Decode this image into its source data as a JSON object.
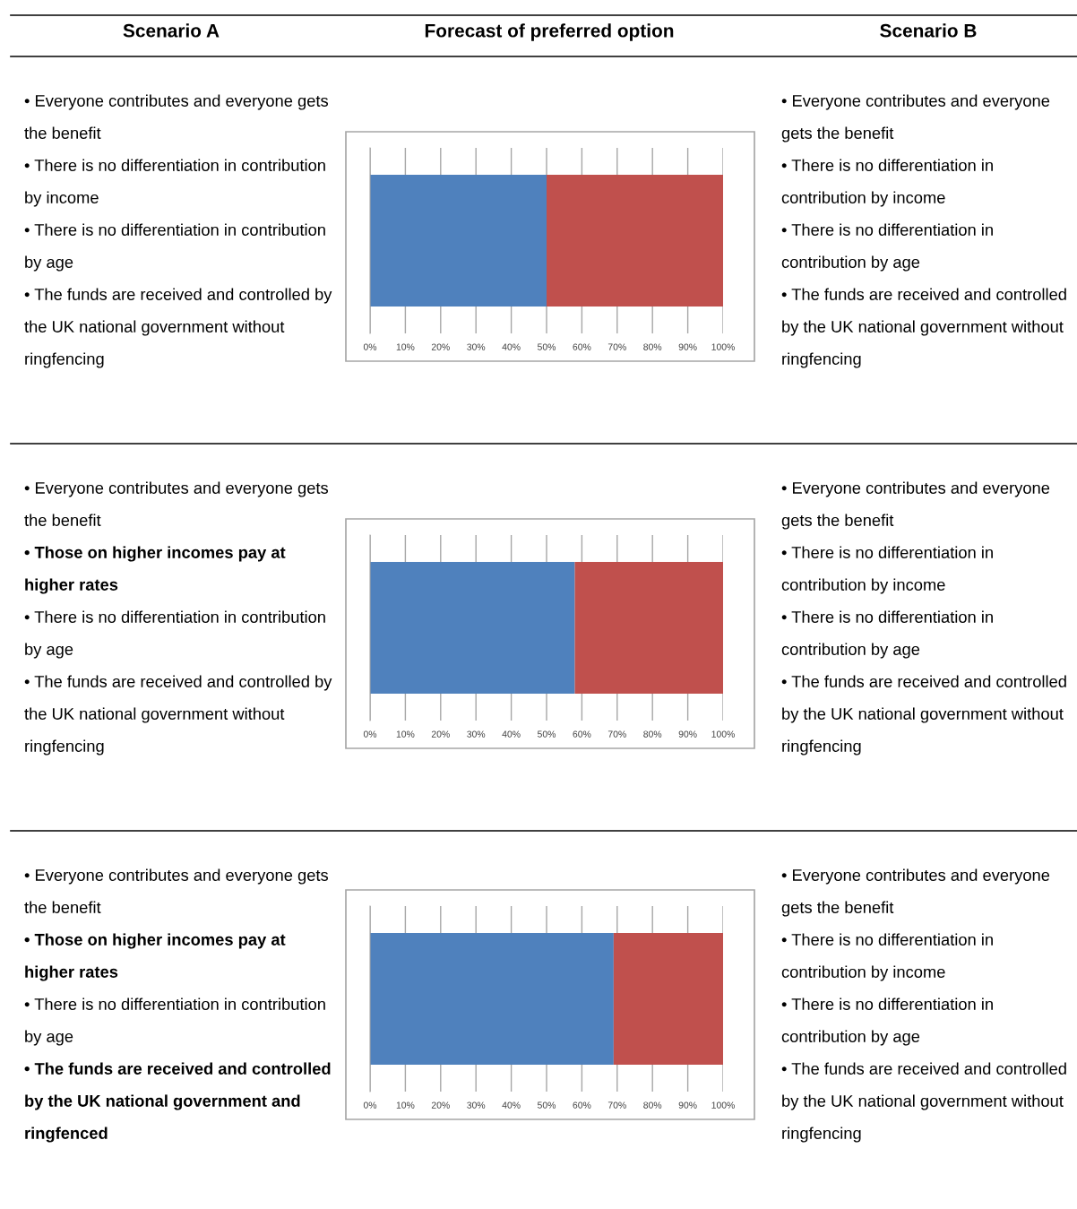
{
  "chart_data": [
    {
      "type": "other",
      "annotations": [
        "Scenario A",
        "Forecast of preferred option",
        "Scenario B"
      ]
    },
    {
      "type": "bar",
      "orientation": "horizontal",
      "stacked": true,
      "categories": [
        null
      ],
      "grid": "x",
      "xlim": [
        0,
        100
      ],
      "xticks": [
        {
          "value": 0,
          "label": "0%"
        },
        {
          "value": 10,
          "label": "10%"
        },
        {
          "value": 20,
          "label": "20%"
        },
        {
          "value": 30,
          "label": "30%"
        },
        {
          "value": 40,
          "label": "40%"
        },
        {
          "value": 50,
          "label": "50%"
        },
        {
          "value": 60,
          "label": "60%"
        },
        {
          "value": 70,
          "label": "70%"
        },
        {
          "value": 80,
          "label": "80%"
        },
        {
          "value": 90,
          "label": "90%"
        },
        {
          "value": 100,
          "label": "100%"
        }
      ],
      "series": [
        {
          "color": "#4f81bd",
          "values": [
            50
          ]
        },
        {
          "color": "#c0504d",
          "values": [
            50
          ]
        }
      ],
      "annotations": [
        "• Everyone contributes and everyone gets the benefit",
        "• There is no differentiation in contribution by income",
        "• There is no differentiation in contribution by age",
        "• The funds are received and controlled by the UK national government without ringfencing",
        "• Everyone contributes and everyone gets the benefit",
        "• There is no differentiation in contribution by income",
        "• There is no differentiation in contribution by age",
        "• The funds are received and controlled by the UK national government without ringfencing"
      ]
    },
    {
      "type": "bar",
      "orientation": "horizontal",
      "stacked": true,
      "categories": [
        null
      ],
      "grid": "x",
      "xlim": [
        0,
        100
      ],
      "xticks": [
        {
          "value": 0,
          "label": "0%"
        },
        {
          "value": 10,
          "label": "10%"
        },
        {
          "value": 20,
          "label": "20%"
        },
        {
          "value": 30,
          "label": "30%"
        },
        {
          "value": 40,
          "label": "40%"
        },
        {
          "value": 50,
          "label": "50%"
        },
        {
          "value": 60,
          "label": "60%"
        },
        {
          "value": 70,
          "label": "70%"
        },
        {
          "value": 80,
          "label": "80%"
        },
        {
          "value": 90,
          "label": "90%"
        },
        {
          "value": 100,
          "label": "100%"
        }
      ],
      "series": [
        {
          "color": "#4f81bd",
          "values": [
            58
          ]
        },
        {
          "color": "#c0504d",
          "values": [
            42
          ]
        }
      ],
      "annotations": [
        "• Everyone contributes and everyone gets the benefit",
        "• Those on higher incomes pay at higher rates",
        "• There is no differentiation in contribution by age",
        "• The funds are received and controlled by the UK national government without ringfencing",
        "• Everyone contributes and everyone gets the benefit",
        "• There is no differentiation in contribution by income",
        "• There is no differentiation in contribution by age",
        "• The funds are received and controlled by the UK national government without ringfencing"
      ]
    },
    {
      "type": "bar",
      "orientation": "horizontal",
      "stacked": true,
      "categories": [
        null
      ],
      "grid": "x",
      "xlim": [
        0,
        100
      ],
      "xticks": [
        {
          "value": 0,
          "label": "0%"
        },
        {
          "value": 10,
          "label": "10%"
        },
        {
          "value": 20,
          "label": "20%"
        },
        {
          "value": 30,
          "label": "30%"
        },
        {
          "value": 40,
          "label": "40%"
        },
        {
          "value": 50,
          "label": "50%"
        },
        {
          "value": 60,
          "label": "60%"
        },
        {
          "value": 70,
          "label": "70%"
        },
        {
          "value": 80,
          "label": "80%"
        },
        {
          "value": 90,
          "label": "90%"
        },
        {
          "value": 100,
          "label": "100%"
        }
      ],
      "series": [
        {
          "color": "#4f81bd",
          "values": [
            69
          ]
        },
        {
          "color": "#c0504d",
          "values": [
            31
          ]
        }
      ],
      "annotations": [
        "• Everyone contributes and everyone gets the benefit",
        "• Those on higher incomes pay at higher rates",
        "• There is no differentiation in contribution by age",
        "• The funds are received and controlled by the UK national government and ringfenced",
        "• Everyone contributes and everyone gets the benefit",
        "• There is no differentiation in contribution by income",
        "• There is no differentiation in contribution by age",
        "• The funds are received and controlled by the UK national government without ringfencing"
      ]
    }
  ]
}
